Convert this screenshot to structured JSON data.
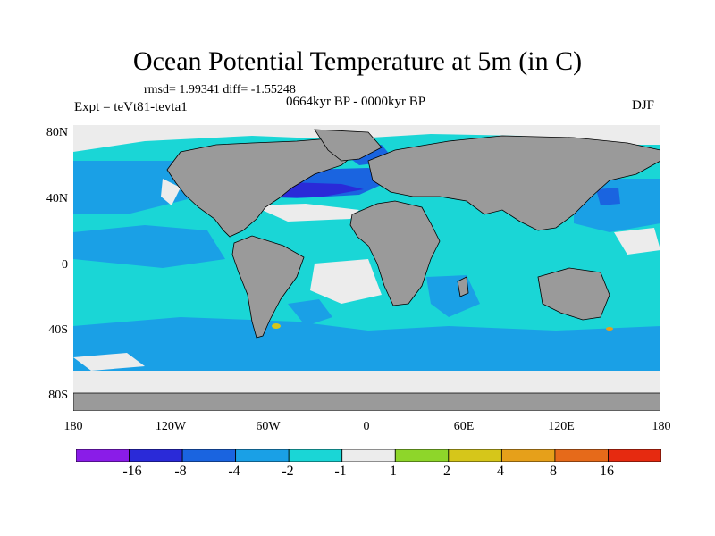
{
  "title": "Ocean Potential Temperature at 5m (in C)",
  "stats": "rmsd= 1.99341 diff= -1.55248",
  "period": "0664kyr BP - 0000kyr BP",
  "experiment": "Expt = teVt81-tevta1",
  "season": "DJF",
  "lat_ticks": [
    "80N",
    "40N",
    "0",
    "40S",
    "80S"
  ],
  "lon_ticks": [
    "180",
    "120W",
    "60W",
    "0",
    "60E",
    "120E",
    "180"
  ],
  "colorbar": {
    "labels": [
      "-16",
      "-8",
      "-4",
      "-2",
      "-1",
      "1",
      "2",
      "4",
      "8",
      "16"
    ],
    "colors": [
      "#8a1ce8",
      "#2a2ad8",
      "#1a64e0",
      "#1aa0e6",
      "#1ad6d6",
      "#ececec",
      "#8ed62a",
      "#d6c61a",
      "#e6a01a",
      "#e66a1a",
      "#e62a10"
    ]
  },
  "colors": {
    "land": "#9a9a9a",
    "ocean_minus1_to_minus2": "#1ad6d6",
    "ocean_minus2_to_minus4": "#1aa0e6",
    "ocean_minus4_to_minus8": "#1a64e0",
    "ocean_minus8_to_minus16": "#2a2ad8",
    "neutral": "#ececec"
  }
}
